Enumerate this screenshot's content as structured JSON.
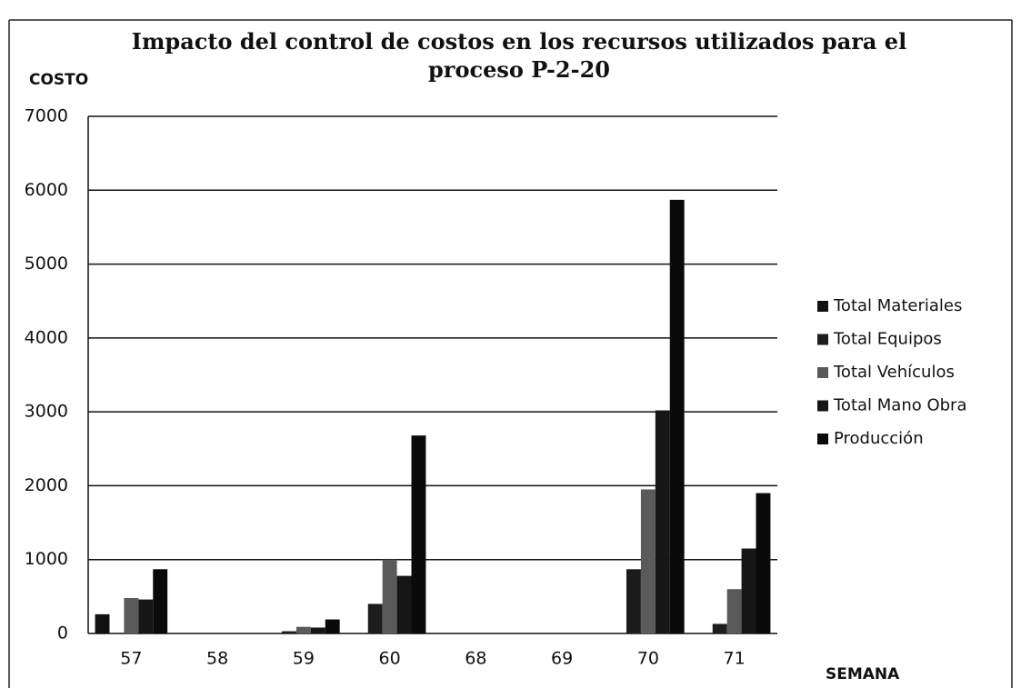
{
  "chart_data": {
    "type": "bar",
    "title": "Impacto del control de costos en los recursos utilizados para el proceso P-2-20",
    "y_label": "COSTO",
    "x_label": "SEMANA",
    "categories": [
      "57",
      "58",
      "59",
      "60",
      "68",
      "69",
      "70",
      "71"
    ],
    "series": [
      {
        "name": "Total Materiales",
        "color": "#111111",
        "values": [
          260,
          0,
          0,
          0,
          0,
          0,
          0,
          0
        ]
      },
      {
        "name": "Total Equipos",
        "color": "#1c1c1c",
        "values": [
          0,
          0,
          30,
          400,
          0,
          0,
          870,
          130
        ]
      },
      {
        "name": "Total Vehículos",
        "color": "#5a5a5a",
        "values": [
          480,
          0,
          90,
          1000,
          0,
          0,
          1950,
          600
        ]
      },
      {
        "name": "Total Mano Obra",
        "color": "#161616",
        "values": [
          460,
          0,
          80,
          780,
          0,
          0,
          3020,
          1150
        ]
      },
      {
        "name": "Producción",
        "color": "#0a0a0a",
        "values": [
          870,
          0,
          190,
          2680,
          0,
          0,
          5870,
          1900
        ]
      }
    ],
    "ylim": [
      0,
      7000
    ],
    "yticks": [
      0,
      1000,
      2000,
      3000,
      4000,
      5000,
      6000,
      7000
    ],
    "grid": true,
    "legend": "right"
  }
}
